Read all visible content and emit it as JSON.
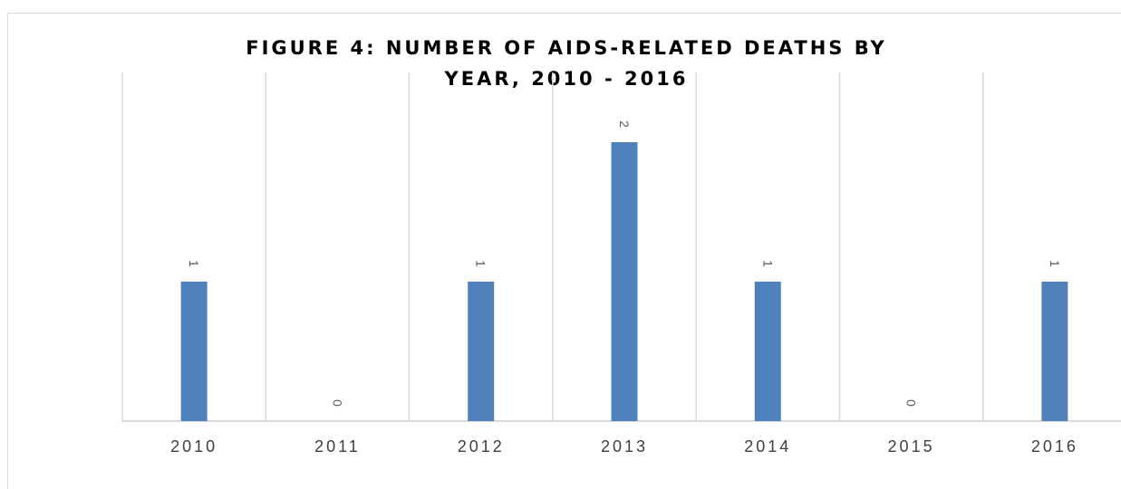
{
  "chart_data": {
    "type": "bar",
    "title": "FIGURE 4: NUMBER OF AIDS-RELATED DEATHS BY YEAR, 2010 - 2016",
    "title_lines": [
      "FIGURE 4: NUMBER OF AIDS-RELATED DEATHS BY",
      "YEAR, 2010 - 2016"
    ],
    "categories": [
      "2010",
      "2011",
      "2012",
      "2013",
      "2014",
      "2015",
      "2016"
    ],
    "values": [
      1,
      0,
      1,
      2,
      1,
      0,
      1
    ],
    "data_labels": [
      "1",
      "0",
      "1",
      "2",
      "1",
      "0",
      "1"
    ],
    "xlabel": "",
    "ylabel": "",
    "ylim": [
      0,
      2
    ],
    "grid": "vertical",
    "legend": "none",
    "bar_color": "#4f81bd",
    "grid_color": "#d9d9d9",
    "label_color": "#595959"
  }
}
